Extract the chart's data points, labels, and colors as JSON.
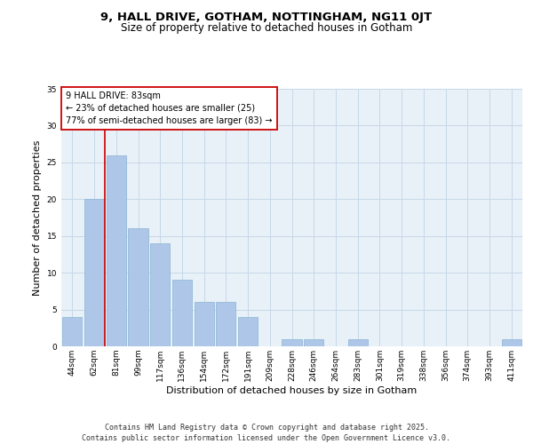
{
  "title_line1": "9, HALL DRIVE, GOTHAM, NOTTINGHAM, NG11 0JT",
  "title_line2": "Size of property relative to detached houses in Gotham",
  "xlabel": "Distribution of detached houses by size in Gotham",
  "ylabel": "Number of detached properties",
  "categories": [
    "44sqm",
    "62sqm",
    "81sqm",
    "99sqm",
    "117sqm",
    "136sqm",
    "154sqm",
    "172sqm",
    "191sqm",
    "209sqm",
    "228sqm",
    "246sqm",
    "264sqm",
    "283sqm",
    "301sqm",
    "319sqm",
    "338sqm",
    "356sqm",
    "374sqm",
    "393sqm",
    "411sqm"
  ],
  "values": [
    4,
    20,
    26,
    16,
    14,
    9,
    6,
    6,
    4,
    0,
    1,
    1,
    0,
    1,
    0,
    0,
    0,
    0,
    0,
    0,
    1
  ],
  "bar_color": "#aec6e8",
  "bar_edge_color": "#8ab4d4",
  "vline_x_idx": 2,
  "vline_color": "#cc0000",
  "annotation_text_line1": "9 HALL DRIVE: 83sqm",
  "annotation_text_line2": "← 23% of detached houses are smaller (25)",
  "annotation_text_line3": "77% of semi-detached houses are larger (83) →",
  "annotation_box_color": "#cc0000",
  "annotation_bg_color": "white",
  "annotation_fontsize": 7,
  "ylim": [
    0,
    35
  ],
  "yticks": [
    0,
    5,
    10,
    15,
    20,
    25,
    30,
    35
  ],
  "grid_color": "#c8d8e8",
  "bg_color": "#e8f0f8",
  "footer_text": "Contains HM Land Registry data © Crown copyright and database right 2025.\nContains public sector information licensed under the Open Government Licence v3.0.",
  "title_fontsize": 9.5,
  "subtitle_fontsize": 8.5,
  "xlabel_fontsize": 8,
  "ylabel_fontsize": 8,
  "tick_fontsize": 6.5,
  "footer_fontsize": 6
}
